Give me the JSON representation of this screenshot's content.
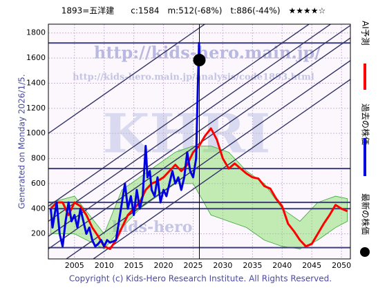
{
  "chart_data": {
    "type": "line",
    "title": "1893=五洋建　　c:1584　m:512(-68%)　t:886(-44%)　★★★★☆",
    "side_text": "Generated on Monday 2026/1/5.",
    "footer": "Copyright (c) Kids-Hero Research Institute. All Rights Reserved.",
    "watermarks": [
      "http://kids-hero.main.jp/",
      "http://kids-hero.main.jp/analysis/code1893.html",
      "KHRI",
      "kids-hero"
    ],
    "xlim": [
      2000.6,
      2051.5
    ],
    "ylim": [
      0,
      1870
    ],
    "xticks": [
      2005,
      2010,
      2015,
      2020,
      2025,
      2030,
      2035,
      2040,
      2045,
      2050
    ],
    "yticks": [
      200,
      400,
      600,
      800,
      1000,
      1200,
      1400,
      1600,
      1800
    ],
    "grid": true,
    "hlines": [
      1720,
      720,
      450,
      400,
      90
    ],
    "trendlines": [
      [
        2000.6,
        1000,
        2051.5,
        2680
      ],
      [
        2000.6,
        420,
        2051.5,
        2100
      ],
      [
        2000.6,
        300,
        2051.5,
        1980
      ],
      [
        2000.6,
        180,
        2051.5,
        1860
      ],
      [
        2000.6,
        80,
        2051.5,
        1760
      ],
      [
        2000.6,
        -100,
        2051.5,
        1580
      ],
      [
        2000.6,
        -250,
        2051.5,
        1430
      ]
    ],
    "band": {
      "color": "#7ddc5a",
      "x": [
        2001,
        2005,
        2010,
        2013,
        2016,
        2019,
        2022,
        2025,
        2028,
        2031,
        2034,
        2037,
        2040,
        2043,
        2046,
        2049,
        2051
      ],
      "upper": [
        450,
        500,
        200,
        550,
        650,
        750,
        850,
        900,
        900,
        850,
        700,
        600,
        400,
        300,
        450,
        500,
        480
      ],
      "lower": [
        200,
        200,
        80,
        250,
        400,
        500,
        600,
        600,
        350,
        300,
        250,
        150,
        100,
        80,
        150,
        250,
        300
      ]
    },
    "series": [
      {
        "name": "過去の株価",
        "color": "#0000e0",
        "x": [
          2001,
          2001.3,
          2002,
          2002.5,
          2003,
          2003.5,
          2004,
          2004.5,
          2005,
          2005.5,
          2006,
          2006.5,
          2007,
          2007.5,
          2008,
          2008.5,
          2009,
          2009.5,
          2010,
          2010.5,
          2011,
          2012,
          2012.5,
          2013,
          2013.5,
          2014,
          2014.5,
          2015,
          2015.5,
          2016,
          2016.5,
          2017,
          2017.3,
          2017.7,
          2018,
          2018.5,
          2019,
          2019.5,
          2020,
          2020.5,
          2021,
          2021.5,
          2022,
          2022.5,
          2023,
          2023.5,
          2024,
          2024.5,
          2025,
          2025.5,
          2025.8,
          2026,
          2026.05
        ],
        "values": [
          400,
          250,
          450,
          200,
          100,
          300,
          450,
          300,
          350,
          250,
          400,
          300,
          200,
          250,
          150,
          100,
          120,
          150,
          100,
          150,
          130,
          150,
          300,
          450,
          600,
          400,
          500,
          350,
          550,
          400,
          500,
          900,
          650,
          700,
          550,
          500,
          650,
          450,
          550,
          500,
          600,
          700,
          600,
          650,
          550,
          650,
          850,
          700,
          650,
          800,
          1400,
          1720,
          1584
        ]
      },
      {
        "name": "AI予測",
        "color": "#ff0000",
        "x": [
          2001,
          2002,
          2003,
          2004,
          2005,
          2006,
          2007,
          2008,
          2009,
          2010,
          2011,
          2012,
          2013,
          2014,
          2015,
          2016,
          2017,
          2018,
          2019,
          2020,
          2021,
          2022,
          2023,
          2024,
          2025,
          2026,
          2027,
          2028,
          2029,
          2030,
          2031,
          2032,
          2033,
          2034,
          2035,
          2036,
          2037,
          2038,
          2039,
          2040,
          2041,
          2042,
          2043,
          2044,
          2045,
          2046,
          2047,
          2048,
          2049,
          2050,
          2051
        ],
        "values": [
          400,
          450,
          450,
          350,
          450,
          420,
          350,
          250,
          180,
          100,
          80,
          150,
          250,
          350,
          400,
          450,
          550,
          600,
          620,
          650,
          700,
          750,
          700,
          750,
          850,
          900,
          980,
          1040,
          950,
          800,
          720,
          760,
          720,
          680,
          650,
          640,
          580,
          560,
          480,
          420,
          280,
          220,
          150,
          100,
          120,
          200,
          280,
          350,
          430,
          400,
          380
        ]
      },
      {
        "name": "最新の株価",
        "color": "#000000",
        "x": [
          2026.05
        ],
        "values": [
          1584
        ]
      }
    ]
  }
}
